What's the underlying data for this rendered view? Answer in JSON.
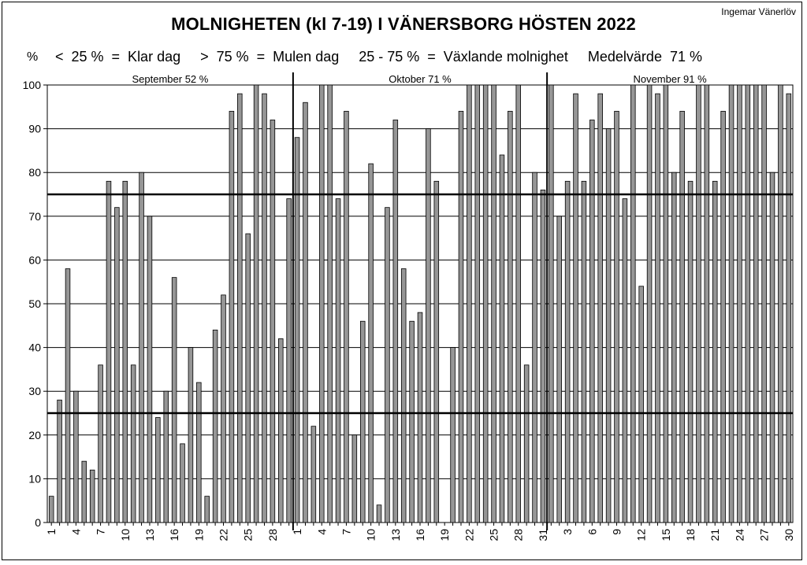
{
  "header": {
    "title": "MOLNIGHETEN (kl 7-19) I VÄNERSBORG  HÖSTEN 2022",
    "author": "Ingemar Vänerlöv",
    "legend": "<  25 %  =  Klar dag     >  75 %  =  Mulen dag     25 - 75 %  =  Växlande molnighet     Medelvärde  71 %",
    "ylabel": "%"
  },
  "colors": {
    "bar": "#969696",
    "bar_edge": "#000000",
    "grid": "#000000"
  },
  "chart_data": {
    "type": "bar",
    "title": "MOLNIGHETEN (kl 7-19) I VÄNERSBORG  HÖSTEN 2022",
    "ylabel": "%",
    "ylim": [
      0,
      100
    ],
    "yticks": [
      0,
      10,
      20,
      30,
      40,
      50,
      60,
      70,
      80,
      90,
      100
    ],
    "grid": true,
    "reference_lines": [
      25,
      75
    ],
    "months": [
      {
        "label": "September  52 %",
        "tick_labels": [
          "1",
          "4",
          "7",
          "10",
          "13",
          "16",
          "19",
          "22",
          "25",
          "28"
        ],
        "values": [
          6,
          28,
          58,
          30,
          14,
          12,
          36,
          78,
          72,
          78,
          36,
          80,
          70,
          24,
          30,
          56,
          18,
          40,
          32,
          6,
          44,
          52,
          94,
          98,
          66,
          100,
          98,
          92,
          42,
          74
        ]
      },
      {
        "label": "Oktober  71 %",
        "tick_labels": [
          "1",
          "4",
          "7",
          "10",
          "13",
          "16",
          "19",
          "22",
          "25",
          "28",
          "31"
        ],
        "values": [
          88,
          96,
          22,
          100,
          100,
          74,
          94,
          20,
          46,
          82,
          4,
          72,
          92,
          58,
          46,
          48,
          90,
          78,
          0,
          40,
          94,
          100,
          100,
          100,
          100,
          84,
          94,
          100,
          36,
          80,
          76
        ]
      },
      {
        "label": "November  91 %",
        "tick_labels": [
          "3",
          "6",
          "9",
          "12",
          "15",
          "18",
          "21",
          "24",
          "27",
          "30"
        ],
        "values": [
          100,
          70,
          78,
          98,
          78,
          92,
          98,
          90,
          94,
          74,
          100,
          54,
          100,
          98,
          100,
          80,
          94,
          78,
          100,
          100,
          78,
          94,
          100,
          100,
          100,
          100,
          100,
          80,
          100,
          98
        ]
      }
    ]
  }
}
